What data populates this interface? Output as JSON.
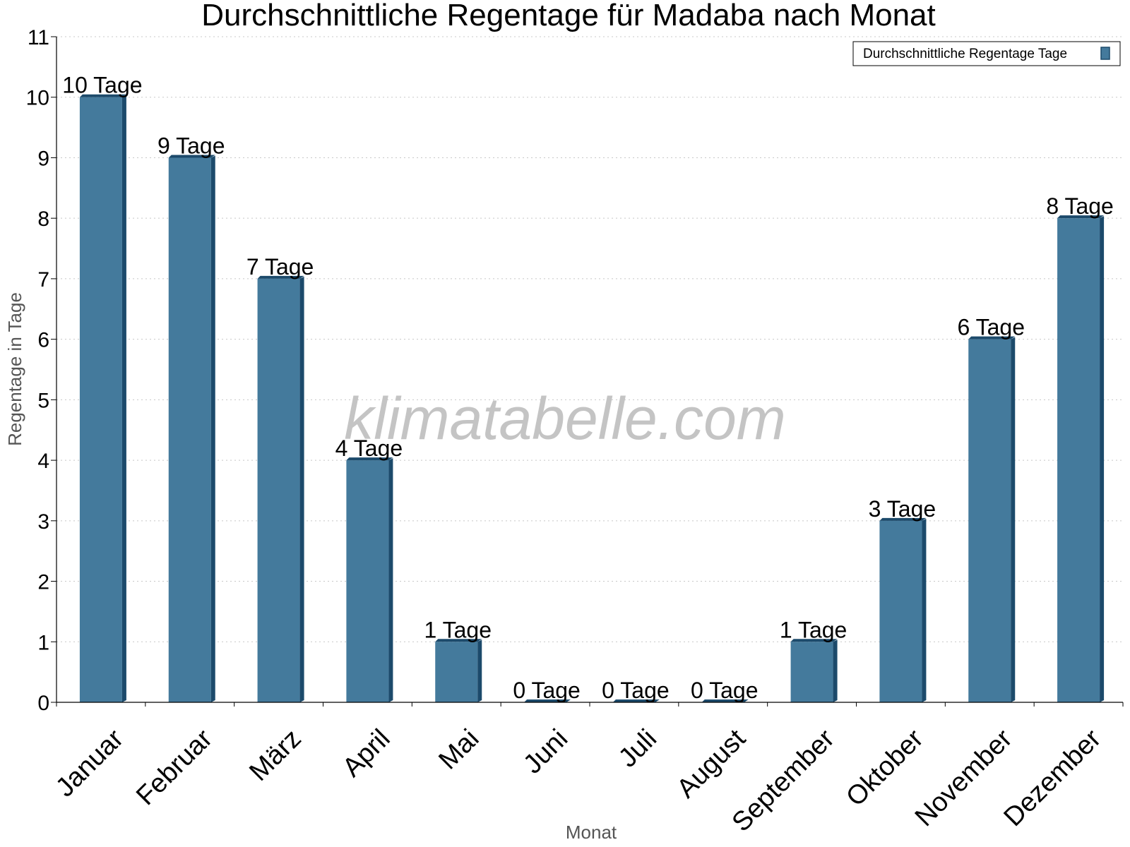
{
  "chart_data": {
    "type": "bar",
    "title": "Durchschnittliche Regentage für Madaba nach Monat",
    "xlabel": "Monat",
    "ylabel": "Regentage in Tage",
    "ylim": [
      0,
      11
    ],
    "yticks": [
      0,
      1,
      2,
      3,
      4,
      5,
      6,
      7,
      8,
      9,
      10,
      11
    ],
    "grid": true,
    "legend_position": "top-right",
    "categories": [
      "Januar",
      "Februar",
      "März",
      "April",
      "Mai",
      "Juni",
      "Juli",
      "August",
      "September",
      "Oktober",
      "November",
      "Dezember"
    ],
    "series": [
      {
        "name": "Durchschnittliche Regentage Tage",
        "values": [
          10,
          9,
          7,
          4,
          1,
          0,
          0,
          0,
          1,
          3,
          6,
          8
        ],
        "labels": [
          "10 Tage",
          "9 Tage",
          "7 Tage",
          "4 Tage",
          "1 Tage",
          "0 Tage",
          "0 Tage",
          "0 Tage",
          "1 Tage",
          "3 Tage",
          "6 Tage",
          "8 Tage"
        ],
        "color": "#447a9c",
        "shade_color": "#1c4a6b"
      }
    ],
    "watermark": "klimatabelle.com"
  }
}
